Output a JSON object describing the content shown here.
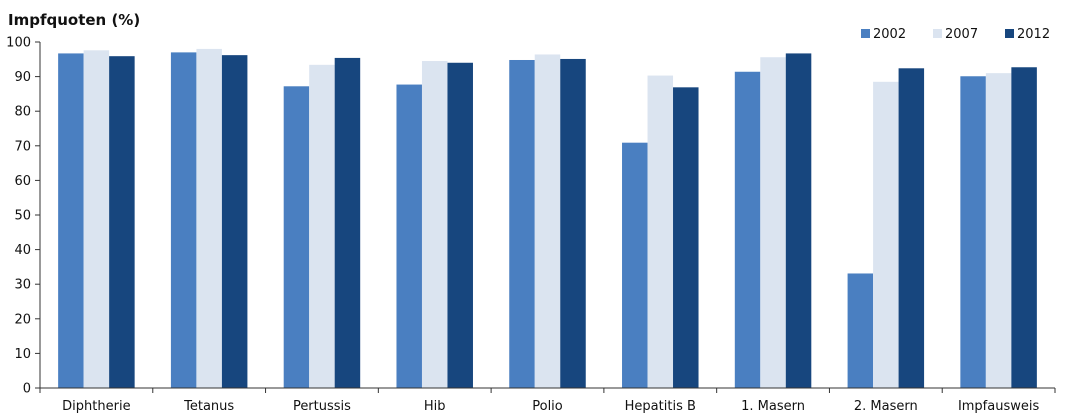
{
  "chart_data": {
    "type": "bar",
    "title": "",
    "xlabel": "",
    "ylabel": "Impfquoten (%)",
    "ylim": [
      0,
      100
    ],
    "yticks": [
      0,
      10,
      20,
      30,
      40,
      50,
      60,
      70,
      80,
      90,
      100
    ],
    "grid": false,
    "legend_position": "top-right",
    "categories": [
      "Diphtherie",
      "Tetanus",
      "Pertussis",
      "Hib",
      "Polio",
      "Hepatitis B",
      "1. Masern",
      "2. Masern",
      "Impfausweis"
    ],
    "series": [
      {
        "name": "2002",
        "color": "#4a7fc1",
        "values": [
          96.7,
          97.0,
          87.2,
          87.7,
          94.8,
          70.9,
          91.4,
          33.1,
          90.1
        ]
      },
      {
        "name": "2007",
        "color": "#dbe4f0",
        "values": [
          97.6,
          98.0,
          93.4,
          94.5,
          96.4,
          90.3,
          95.6,
          88.5,
          91.0
        ]
      },
      {
        "name": "2012",
        "color": "#17467e",
        "values": [
          95.9,
          96.2,
          95.4,
          94.0,
          95.1,
          86.9,
          96.7,
          92.4,
          92.7
        ]
      }
    ]
  }
}
